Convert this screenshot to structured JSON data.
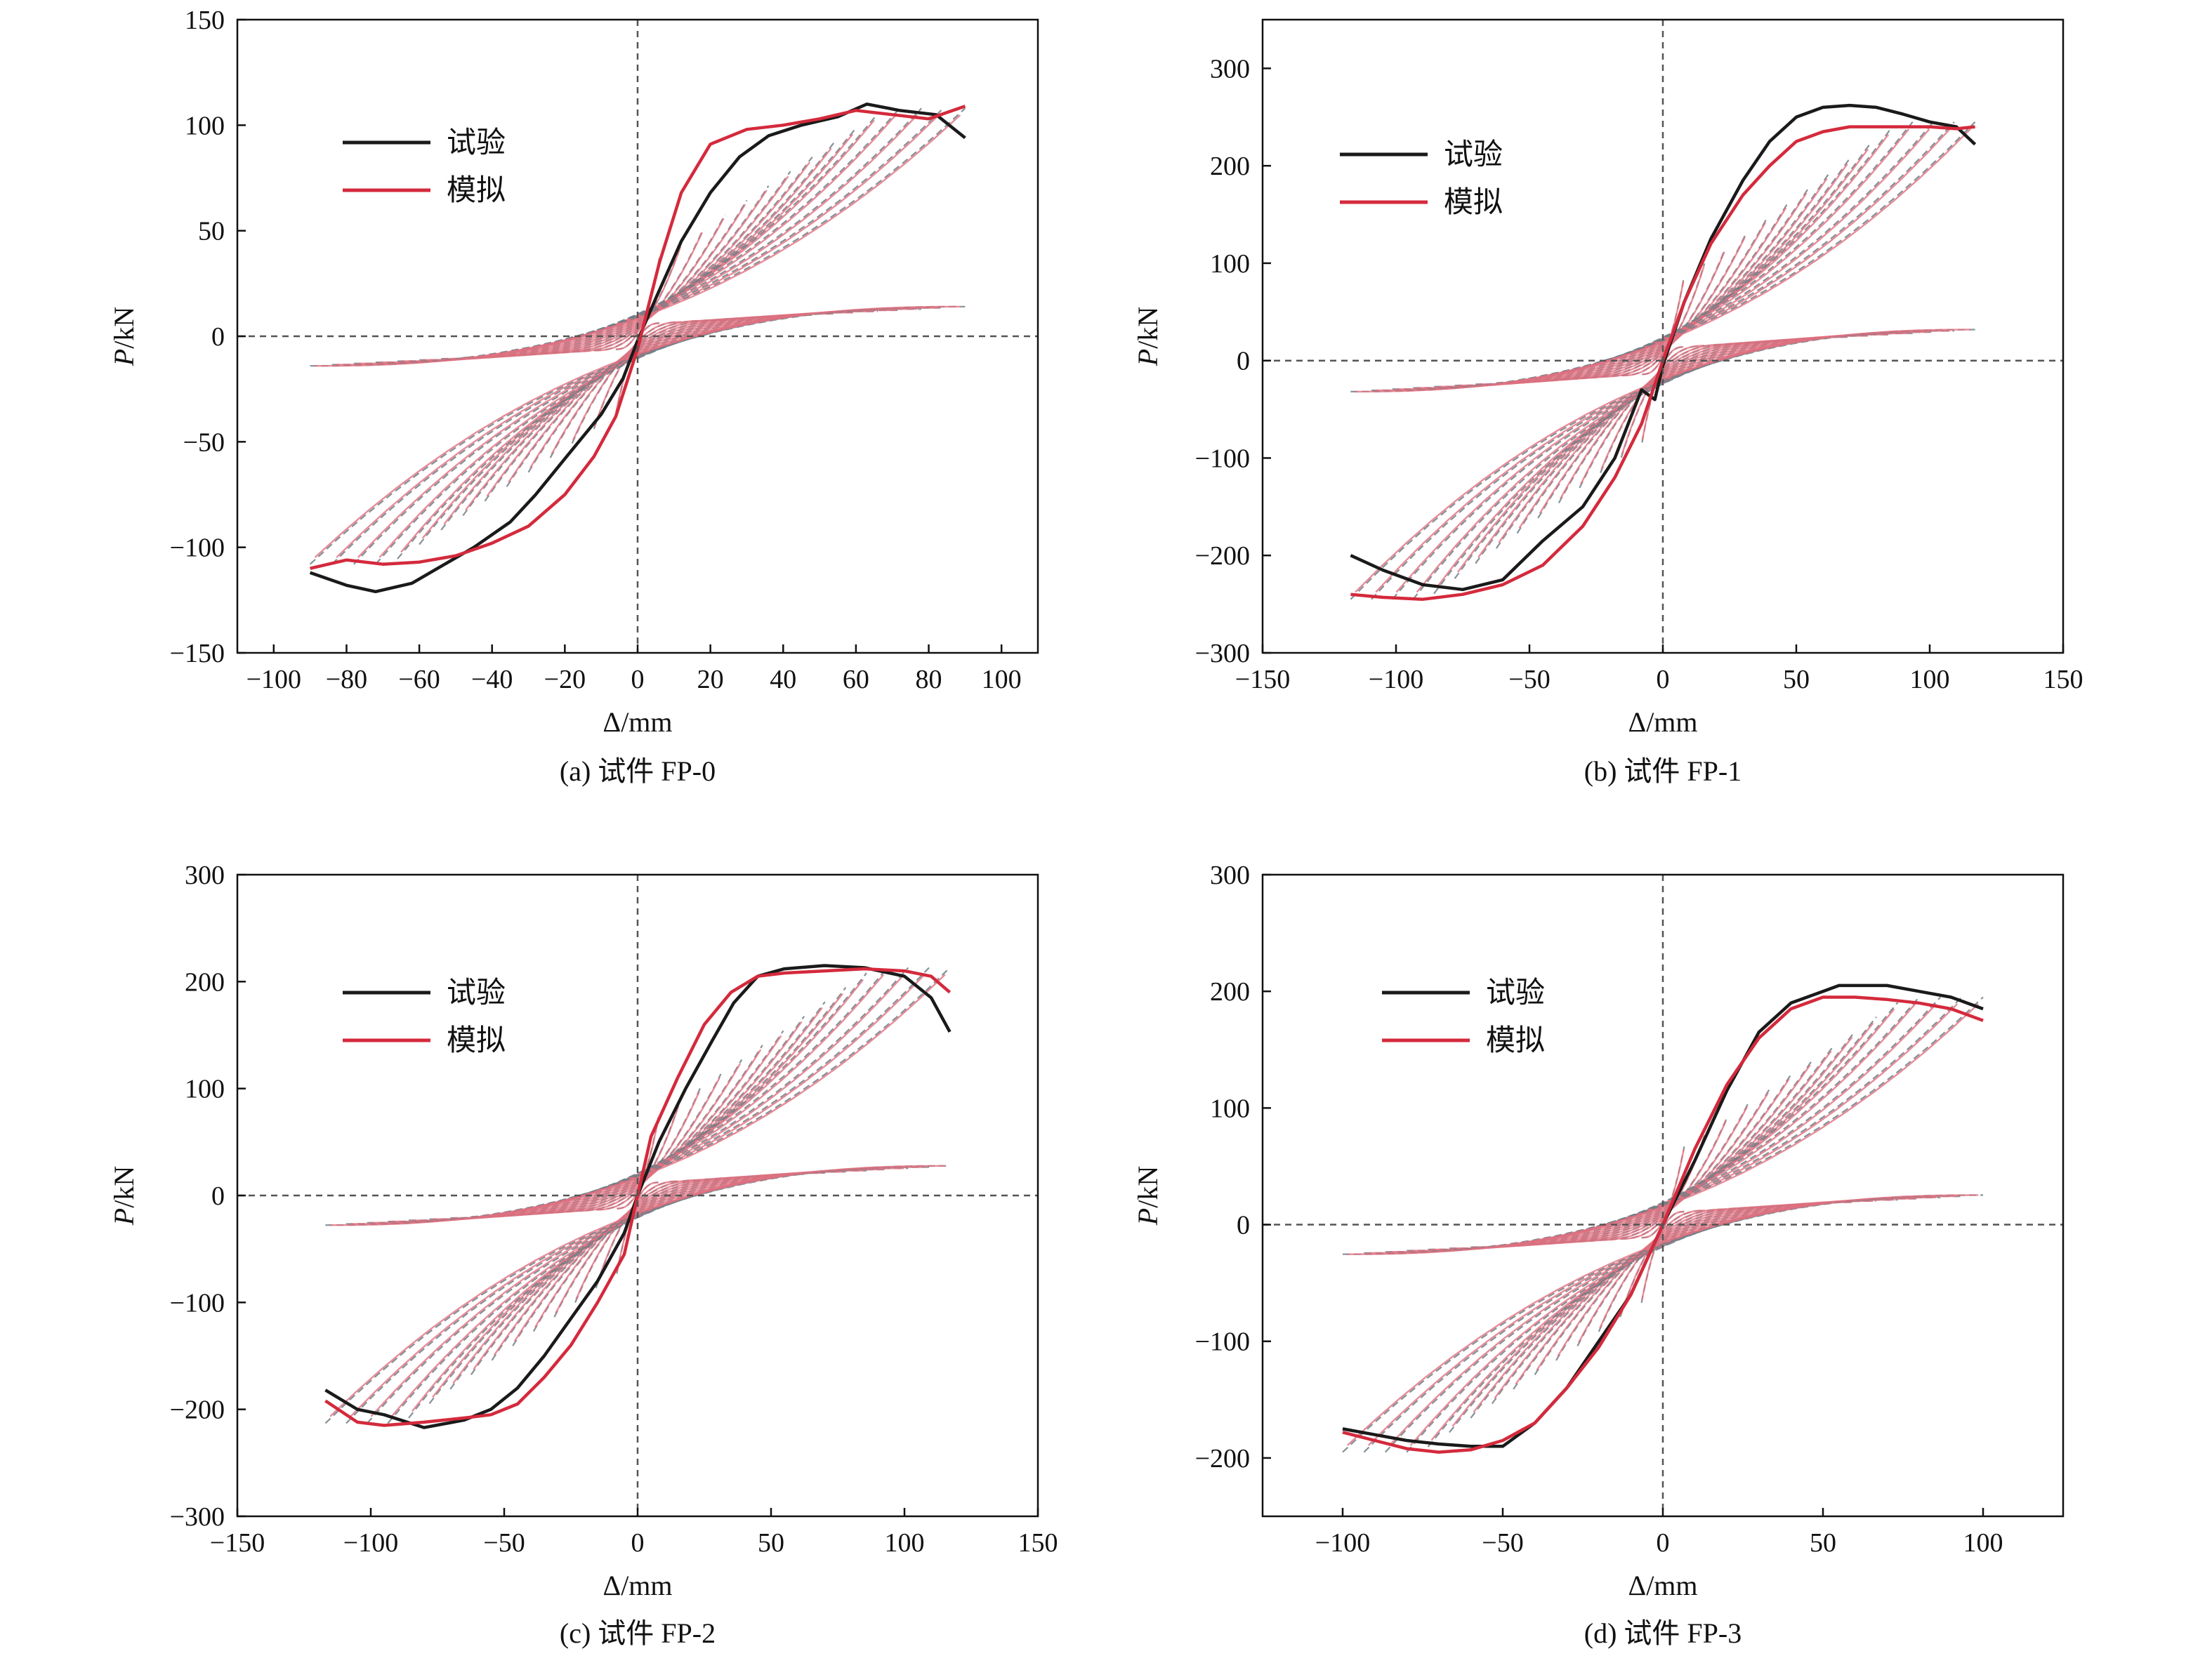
{
  "legend": {
    "test_label": "试验",
    "sim_label": "模拟"
  },
  "colors": {
    "test": "#1a1a1a",
    "sim": "#d42a3c",
    "test_cycles": "#6f7f87",
    "sim_cycles": "#e0707f",
    "zero_line": "#555555"
  },
  "chart_data": [
    {
      "type": "line",
      "caption": "(a) 试件 FP-0",
      "xlabel": "Δ/mm",
      "ylabel_italic": "P",
      "ylabel_unit": "/kN",
      "xlim": [
        -110,
        110
      ],
      "ylim": [
        -150,
        150
      ],
      "xticks": [
        -100,
        -80,
        -60,
        -40,
        -20,
        0,
        20,
        40,
        60,
        80,
        100
      ],
      "yticks": [
        -150,
        -100,
        -50,
        0,
        50,
        100,
        150
      ],
      "xtick_labels": [
        "−100",
        "−80",
        "−60",
        "−40",
        "−20",
        "0",
        "20",
        "40",
        "60",
        "80",
        "100"
      ],
      "ytick_labels": [
        "−150",
        "−100",
        "−50",
        "0",
        "50",
        "100",
        "150"
      ],
      "dmax": 90,
      "peak": 108,
      "series": [
        {
          "name": "试验",
          "x": [
            -90,
            -80,
            -72,
            -62,
            -55,
            -45,
            -35,
            -28,
            -20,
            -10,
            -4,
            0,
            5,
            12,
            20,
            28,
            36,
            45,
            55,
            63,
            72,
            82,
            90
          ],
          "y": [
            -112,
            -118,
            -121,
            -117,
            -110,
            -100,
            -88,
            -75,
            -58,
            -37,
            -20,
            -2,
            18,
            45,
            68,
            85,
            95,
            100,
            104,
            110,
            107,
            105,
            94
          ]
        },
        {
          "name": "模拟",
          "x": [
            -90,
            -80,
            -70,
            -60,
            -50,
            -40,
            -30,
            -20,
            -12,
            -6,
            0,
            6,
            12,
            20,
            30,
            40,
            50,
            60,
            70,
            80,
            90
          ],
          "y": [
            -110,
            -106,
            -108,
            -107,
            -104,
            -98,
            -90,
            -75,
            -57,
            -38,
            -6,
            35,
            68,
            91,
            98,
            100,
            103,
            107,
            105,
            103,
            109
          ]
        }
      ]
    },
    {
      "type": "line",
      "caption": "(b) 试件 FP-1",
      "xlabel": "Δ/mm",
      "ylabel_italic": "P",
      "ylabel_unit": "/kN",
      "xlim": [
        -150,
        150
      ],
      "ylim": [
        -300,
        350
      ],
      "xticks": [
        -150,
        -100,
        -50,
        0,
        50,
        100,
        150
      ],
      "yticks": [
        -300,
        -200,
        -100,
        0,
        100,
        200,
        300
      ],
      "xtick_labels": [
        "−150",
        "−100",
        "−50",
        "0",
        "50",
        "100",
        "150"
      ],
      "ytick_labels": [
        "−300",
        "−200",
        "−100",
        "0",
        "100",
        "200",
        "300"
      ],
      "dmax": 117,
      "peak": 245,
      "series": [
        {
          "name": "试验",
          "x": [
            -117,
            -105,
            -90,
            -75,
            -60,
            -45,
            -30,
            -18,
            -8,
            -3,
            0,
            8,
            18,
            30,
            40,
            50,
            60,
            70,
            80,
            90,
            100,
            110,
            117
          ],
          "y": [
            -200,
            -215,
            -230,
            -235,
            -225,
            -185,
            -150,
            -100,
            -30,
            -40,
            -5,
            60,
            125,
            185,
            225,
            250,
            260,
            262,
            260,
            253,
            245,
            240,
            222
          ]
        },
        {
          "name": "模拟",
          "x": [
            -117,
            -105,
            -90,
            -75,
            -60,
            -45,
            -30,
            -18,
            -8,
            0,
            8,
            18,
            30,
            40,
            50,
            60,
            70,
            80,
            90,
            100,
            110,
            117
          ],
          "y": [
            -240,
            -243,
            -245,
            -240,
            -230,
            -210,
            -170,
            -120,
            -65,
            0,
            60,
            120,
            170,
            200,
            225,
            235,
            240,
            240,
            240,
            240,
            238,
            240
          ]
        }
      ]
    },
    {
      "type": "line",
      "caption": "(c) 试件 FP-2",
      "xlabel": "Δ/mm",
      "ylabel_italic": "P",
      "ylabel_unit": "/kN",
      "xlim": [
        -150,
        150
      ],
      "ylim": [
        -300,
        300
      ],
      "xticks": [
        -150,
        -100,
        -50,
        0,
        50,
        100,
        150
      ],
      "yticks": [
        -300,
        -200,
        -100,
        0,
        100,
        200,
        300
      ],
      "xtick_labels": [
        "−150",
        "−100",
        "−50",
        "0",
        "50",
        "100",
        "150"
      ],
      "ytick_labels": [
        "−300",
        "−200",
        "−100",
        "0",
        "100",
        "200",
        "300"
      ],
      "dmax": 117,
      "peak": 213,
      "series": [
        {
          "name": "试验",
          "x": [
            -117,
            -105,
            -95,
            -80,
            -65,
            -55,
            -45,
            -35,
            -25,
            -15,
            -5,
            0,
            8,
            18,
            28,
            36,
            45,
            55,
            70,
            85,
            100,
            110,
            117
          ],
          "y": [
            -182,
            -200,
            -205,
            -217,
            -210,
            -200,
            -180,
            -150,
            -115,
            -80,
            -35,
            0,
            50,
            100,
            145,
            180,
            205,
            212,
            215,
            213,
            205,
            185,
            153
          ]
        },
        {
          "name": "模拟",
          "x": [
            -117,
            -105,
            -95,
            -80,
            -65,
            -55,
            -45,
            -35,
            -25,
            -15,
            -5,
            0,
            5,
            15,
            25,
            35,
            45,
            55,
            70,
            85,
            100,
            110,
            117
          ],
          "y": [
            -192,
            -212,
            -215,
            -212,
            -208,
            -205,
            -195,
            -170,
            -140,
            -100,
            -55,
            0,
            55,
            110,
            160,
            190,
            205,
            208,
            210,
            212,
            210,
            205,
            190
          ]
        }
      ]
    },
    {
      "type": "line",
      "caption": "(d) 试件 FP-3",
      "xlabel": "Δ/mm",
      "ylabel_italic": "P",
      "ylabel_unit": "/kN",
      "xlim": [
        -125,
        125
      ],
      "ylim": [
        -250,
        300
      ],
      "xticks": [
        -100,
        -50,
        0,
        50,
        100
      ],
      "yticks": [
        -200,
        -100,
        0,
        100,
        200,
        300
      ],
      "xtick_labels": [
        "−100",
        "−50",
        "0",
        "50",
        "100"
      ],
      "ytick_labels": [
        "−200",
        "−100",
        "0",
        "100",
        "200",
        "300"
      ],
      "dmax": 100,
      "peak": 195,
      "series": [
        {
          "name": "试验",
          "x": [
            -100,
            -90,
            -80,
            -70,
            -60,
            -50,
            -40,
            -30,
            -20,
            -10,
            0,
            10,
            20,
            30,
            40,
            50,
            55,
            70,
            80,
            90,
            100
          ],
          "y": [
            -175,
            -180,
            -185,
            -188,
            -190,
            -190,
            -170,
            -140,
            -100,
            -60,
            0,
            55,
            115,
            165,
            190,
            200,
            205,
            205,
            200,
            195,
            185
          ]
        },
        {
          "name": "模拟",
          "x": [
            -100,
            -90,
            -80,
            -70,
            -60,
            -50,
            -40,
            -30,
            -20,
            -10,
            0,
            10,
            20,
            30,
            40,
            50,
            60,
            70,
            80,
            90,
            100
          ],
          "y": [
            -178,
            -185,
            -192,
            -195,
            -193,
            -185,
            -170,
            -140,
            -105,
            -60,
            0,
            65,
            120,
            160,
            185,
            195,
            195,
            193,
            190,
            185,
            175
          ]
        }
      ]
    }
  ]
}
